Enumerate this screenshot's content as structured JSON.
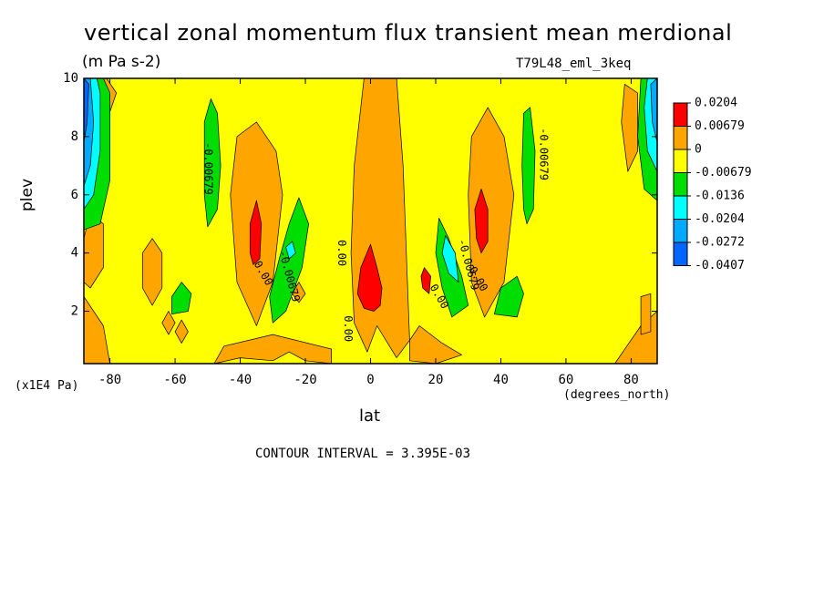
{
  "chart_data": {
    "type": "heatmap",
    "title": "vertical zonal momentum flux transient mean merdional",
    "units": "(m Pa s-2)",
    "run_label": "T79L48_eml_3keq",
    "xlabel": "lat",
    "x_unit": "(degrees_north)",
    "ylabel": "plev",
    "y_unit": "(x1E4 Pa)",
    "xlim": [
      -88,
      88
    ],
    "ylim": [
      10,
      0.2
    ],
    "x_ticks": [
      -80,
      -60,
      -40,
      -20,
      0,
      20,
      40,
      60,
      80
    ],
    "x_tick_labels": [
      "-80",
      "-60",
      "-40",
      "-20",
      "0",
      "20",
      "40",
      "60",
      "80"
    ],
    "y_ticks": [
      2,
      4,
      6,
      8,
      10
    ],
    "y_tick_labels": [
      "2",
      "4",
      "6",
      "8",
      "10"
    ],
    "contour_interval": "CONTOUR INTERVAL = 3.395E-03",
    "colorbar": {
      "levels": [
        "0.0204",
        "0.00679",
        "0",
        "-0.00679",
        "-0.0136",
        "-0.0204",
        "-0.0272",
        "-0.0407"
      ],
      "colors": [
        "#ff0000",
        "#ffa500",
        "#ffff00",
        "#00dd00",
        "#00ffff",
        "#00aaff",
        "#0066ff"
      ]
    },
    "background_color": "#ffff00",
    "regions": [
      {
        "color": "#ffa500",
        "points": [
          [
            -2,
            10
          ],
          [
            8,
            10
          ],
          [
            10,
            7
          ],
          [
            11,
            4
          ],
          [
            12,
            1
          ],
          [
            8,
            0.4
          ],
          [
            2,
            1.5
          ],
          [
            -1,
            0.6
          ],
          [
            -5,
            1.6
          ],
          [
            -6,
            4
          ],
          [
            -5,
            7
          ]
        ]
      },
      {
        "color": "#ffa500",
        "points": [
          [
            -48,
            0.2
          ],
          [
            -40,
            0.4
          ],
          [
            -30,
            0.3
          ],
          [
            -25,
            0.6
          ],
          [
            -20,
            0.3
          ],
          [
            -12,
            0.2
          ],
          [
            -12,
            0.7
          ],
          [
            -30,
            1.2
          ],
          [
            -45,
            0.8
          ]
        ]
      },
      {
        "color": "#ffa500",
        "points": [
          [
            12,
            0.3
          ],
          [
            20,
            0.2
          ],
          [
            28,
            0.5
          ],
          [
            22,
            0.9
          ],
          [
            15,
            1.5
          ],
          [
            12,
            1.0
          ]
        ]
      },
      {
        "color": "#ffa500",
        "points": [
          [
            -88,
            0.2
          ],
          [
            -80,
            0.2
          ],
          [
            -82,
            1.5
          ],
          [
            -88,
            2.5
          ]
        ]
      },
      {
        "color": "#ffa500",
        "points": [
          [
            75,
            0.2
          ],
          [
            88,
            0.2
          ],
          [
            88,
            2.0
          ],
          [
            83,
            1.5
          ]
        ]
      },
      {
        "color": "#ffa500",
        "points": [
          [
            -35,
            1.5
          ],
          [
            -30,
            3
          ],
          [
            -27,
            6
          ],
          [
            -29,
            7.5
          ],
          [
            -35,
            8.5
          ],
          [
            -41,
            8.0
          ],
          [
            -43,
            6
          ],
          [
            -41,
            3
          ]
        ]
      },
      {
        "color": "#ffa500",
        "points": [
          [
            35,
            1.8
          ],
          [
            41,
            3
          ],
          [
            44,
            6
          ],
          [
            41,
            8.0
          ],
          [
            36,
            9.0
          ],
          [
            31,
            8.0
          ],
          [
            30,
            6
          ],
          [
            31,
            3
          ]
        ]
      },
      {
        "color": "#ffa500",
        "points": [
          [
            -67,
            2.2
          ],
          [
            -64,
            2.8
          ],
          [
            -64,
            4.0
          ],
          [
            -67,
            4.5
          ],
          [
            -70,
            4.0
          ],
          [
            -70,
            2.8
          ]
        ]
      },
      {
        "color": "#ffa500",
        "points": [
          [
            -86,
            2.8
          ],
          [
            -82,
            3.5
          ],
          [
            -82,
            5.0
          ],
          [
            -86,
            5.4
          ],
          [
            -88,
            4.5
          ],
          [
            -88,
            3.0
          ]
        ]
      },
      {
        "color": "#ffa500",
        "points": [
          [
            -82,
            8.2
          ],
          [
            -78,
            9.5
          ],
          [
            -81,
            10
          ],
          [
            -84,
            10
          ],
          [
            -82,
            9.0
          ]
        ]
      },
      {
        "color": "#ffa500",
        "points": [
          [
            -62,
            1.2
          ],
          [
            -60,
            1.6
          ],
          [
            -62,
            2.0
          ],
          [
            -64,
            1.6
          ]
        ]
      },
      {
        "color": "#ffa500",
        "points": [
          [
            -58,
            0.9
          ],
          [
            -56,
            1.3
          ],
          [
            -58,
            1.7
          ],
          [
            -60,
            1.3
          ]
        ]
      },
      {
        "color": "#ffa500",
        "points": [
          [
            -22,
            2.3
          ],
          [
            -20,
            2.6
          ],
          [
            -22,
            3.0
          ],
          [
            -24,
            2.6
          ]
        ]
      },
      {
        "color": "#ffa500",
        "points": [
          [
            83,
            1.2
          ],
          [
            86,
            1.3
          ],
          [
            86,
            2.6
          ],
          [
            83,
            2.5
          ]
        ]
      },
      {
        "color": "#ffa500",
        "points": [
          [
            79,
            6.8
          ],
          [
            82,
            7.5
          ],
          [
            82,
            9.5
          ],
          [
            78,
            9.8
          ],
          [
            77,
            8.5
          ]
        ]
      },
      {
        "color": "#ff0000",
        "points": [
          [
            -4,
            2.6
          ],
          [
            -2,
            2.1
          ],
          [
            1,
            2.0
          ],
          [
            3,
            2.2
          ],
          [
            3.5,
            2.8
          ],
          [
            2,
            3.5
          ],
          [
            0,
            4.3
          ],
          [
            -3,
            3.5
          ]
        ]
      },
      {
        "color": "#ff0000",
        "points": [
          [
            16,
            2.8
          ],
          [
            18,
            2.6
          ],
          [
            18.5,
            3.2
          ],
          [
            16.5,
            3.5
          ],
          [
            15.5,
            3.2
          ]
        ]
      },
      {
        "color": "#ff0000",
        "points": [
          [
            -36,
            3.6
          ],
          [
            -34,
            3.8
          ],
          [
            -33.5,
            5.0
          ],
          [
            -35,
            5.8
          ],
          [
            -37,
            5.0
          ],
          [
            -37,
            4.0
          ]
        ]
      },
      {
        "color": "#ff0000",
        "points": [
          [
            34,
            4.0
          ],
          [
            36,
            4.4
          ],
          [
            36,
            5.5
          ],
          [
            34,
            6.2
          ],
          [
            32,
            5.5
          ],
          [
            32.5,
            4.5
          ]
        ]
      },
      {
        "color": "#00dd00",
        "points": [
          [
            -30,
            1.6
          ],
          [
            -26,
            2.0
          ],
          [
            -21,
            3.5
          ],
          [
            -19,
            5.0
          ],
          [
            -22,
            5.9
          ],
          [
            -25,
            5.0
          ],
          [
            -28,
            3.8
          ],
          [
            -31,
            2.5
          ]
        ]
      },
      {
        "color": "#00dd00",
        "points": [
          [
            25,
            1.8
          ],
          [
            30,
            2.2
          ],
          [
            28,
            3.2
          ],
          [
            24,
            4.5
          ],
          [
            21,
            5.2
          ],
          [
            20,
            4.0
          ],
          [
            22,
            2.8
          ]
        ]
      },
      {
        "color": "#00dd00",
        "points": [
          [
            -50,
            4.9
          ],
          [
            -47,
            5.5
          ],
          [
            -46,
            7
          ],
          [
            -47,
            8.8
          ],
          [
            -49,
            9.3
          ],
          [
            -51,
            8.5
          ],
          [
            -51,
            6.0
          ]
        ]
      },
      {
        "color": "#00dd00",
        "points": [
          [
            48,
            5.0
          ],
          [
            50,
            5.5
          ],
          [
            50.5,
            7.5
          ],
          [
            49,
            9.0
          ],
          [
            47,
            8.8
          ],
          [
            46.5,
            7.0
          ],
          [
            47,
            5.5
          ]
        ]
      },
      {
        "color": "#00dd00",
        "points": [
          [
            -61,
            1.9
          ],
          [
            -56,
            2.0
          ],
          [
            -55,
            2.6
          ],
          [
            -58,
            3.0
          ],
          [
            -61,
            2.5
          ]
        ]
      },
      {
        "color": "#00dd00",
        "points": [
          [
            38,
            1.9
          ],
          [
            45,
            1.8
          ],
          [
            47,
            2.6
          ],
          [
            45,
            3.2
          ],
          [
            40,
            2.8
          ]
        ]
      },
      {
        "color": "#00dd00",
        "points": [
          [
            -88,
            4.8
          ],
          [
            -83,
            5.0
          ],
          [
            -80,
            6.5
          ],
          [
            -80,
            9.5
          ],
          [
            -82,
            10
          ],
          [
            -88,
            10
          ]
        ]
      },
      {
        "color": "#00dd00",
        "points": [
          [
            88,
            5.8
          ],
          [
            84,
            6.2
          ],
          [
            82,
            8.0
          ],
          [
            83,
            10
          ],
          [
            88,
            10
          ]
        ]
      },
      {
        "color": "#00ffff",
        "points": [
          [
            24,
            3.3
          ],
          [
            27,
            3.0
          ],
          [
            26,
            4.0
          ],
          [
            23,
            4.6
          ],
          [
            22,
            4.0
          ]
        ]
      },
      {
        "color": "#00ffff",
        "points": [
          [
            -25,
            3.8
          ],
          [
            -23,
            4.0
          ],
          [
            -24,
            4.4
          ],
          [
            -26,
            4.2
          ]
        ]
      },
      {
        "color": "#00ffff",
        "points": [
          [
            -88,
            5.5
          ],
          [
            -85,
            6.0
          ],
          [
            -83,
            7.5
          ],
          [
            -83,
            9.5
          ],
          [
            -84,
            10
          ],
          [
            -88,
            10
          ]
        ]
      },
      {
        "color": "#00ffff",
        "points": [
          [
            88,
            6.8
          ],
          [
            85,
            7.5
          ],
          [
            84,
            9.0
          ],
          [
            85,
            10
          ],
          [
            88,
            10
          ]
        ]
      },
      {
        "color": "#00aaff",
        "points": [
          [
            -88,
            6.3
          ],
          [
            -86,
            7.0
          ],
          [
            -85,
            8.5
          ],
          [
            -86,
            10
          ],
          [
            -88,
            10
          ]
        ]
      },
      {
        "color": "#00aaff",
        "points": [
          [
            88,
            7.8
          ],
          [
            86.5,
            8.5
          ],
          [
            86,
            9.8
          ],
          [
            88,
            10
          ]
        ]
      },
      {
        "color": "#0066ff",
        "points": [
          [
            -88,
            7.8
          ],
          [
            -87,
            8.5
          ],
          [
            -86.5,
            9.8
          ],
          [
            -88,
            10
          ]
        ]
      }
    ],
    "contour_labels": [
      {
        "text": "-0.00679",
        "lat": -50,
        "plev": 6.9,
        "angle": 90
      },
      {
        "text": "-0.00679",
        "lat": -25,
        "plev": 3.2,
        "angle": 75
      },
      {
        "text": "0.00",
        "lat": -33,
        "plev": 3.3,
        "angle": 60
      },
      {
        "text": "0.00",
        "lat": -9,
        "plev": 4.0,
        "angle": 90
      },
      {
        "text": "0.00",
        "lat": -7,
        "plev": 1.4,
        "angle": 90
      },
      {
        "text": "0.00",
        "lat": 21,
        "plev": 2.5,
        "angle": 60
      },
      {
        "text": "-0.00679",
        "lat": 30,
        "plev": 3.6,
        "angle": 75
      },
      {
        "text": "0.00",
        "lat": 33,
        "plev": 3.1,
        "angle": 60
      },
      {
        "text": "-0.00679",
        "lat": 53,
        "plev": 7.4,
        "angle": 90
      }
    ]
  }
}
